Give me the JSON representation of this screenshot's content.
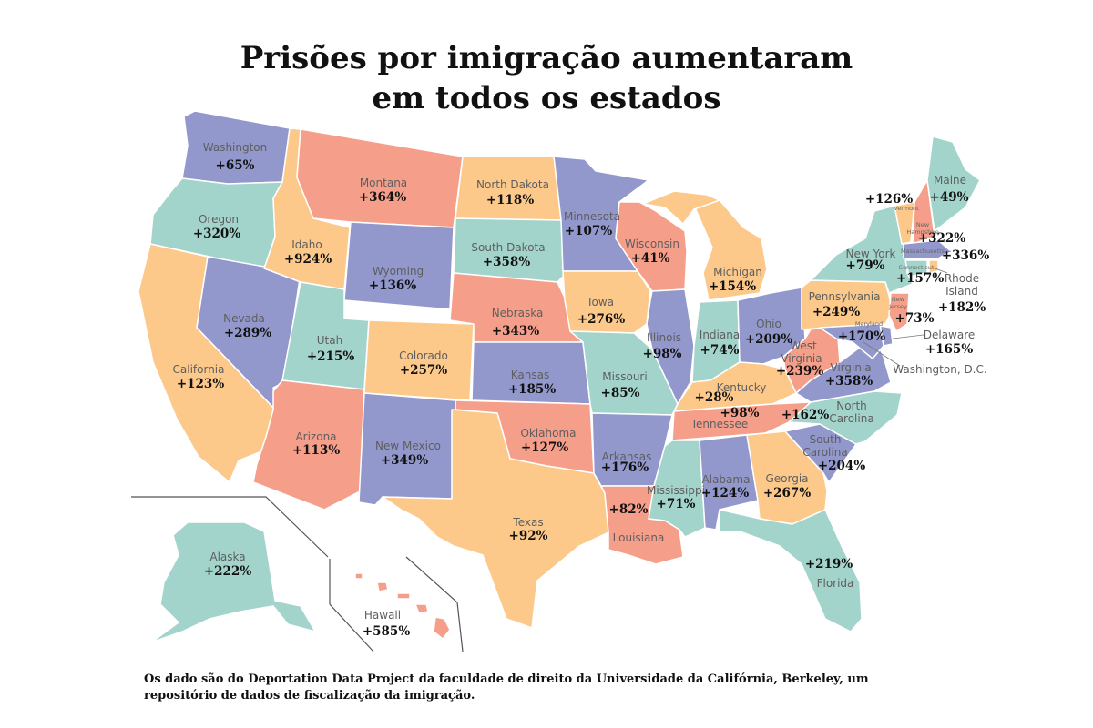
{
  "title": {
    "line1": "Prisões por imigração aumentaram",
    "line2": "em todos os estados"
  },
  "footnote": "Os dado são do Deportation Data Project da faculdade de direito da Universidade da Califórnia, Berkeley, um repositório de dados de fiscalização da imigração.",
  "colors": {
    "teal": "#a3d4cc",
    "orange": "#fcc98b",
    "salmon": "#f59f8a",
    "purple": "#9298cc"
  },
  "states": {
    "washington": {
      "name": "Washington",
      "value": "+65%"
    },
    "oregon": {
      "name": "Oregon",
      "value": "+320%"
    },
    "california": {
      "name": "California",
      "value": "+123%"
    },
    "nevada": {
      "name": "Nevada",
      "value": "+289%"
    },
    "idaho": {
      "name": "Idaho",
      "value": "+924%"
    },
    "montana": {
      "name": "Montana",
      "value": "+364%"
    },
    "wyoming": {
      "name": "Wyoming",
      "value": "+136%"
    },
    "utah": {
      "name": "Utah",
      "value": "+215%"
    },
    "arizona": {
      "name": "Arizona",
      "value": "+113%"
    },
    "colorado": {
      "name": "Colorado",
      "value": "+257%"
    },
    "new_mexico": {
      "name": "New Mexico",
      "value": "+349%"
    },
    "north_dakota": {
      "name": "North Dakota",
      "value": "+118%"
    },
    "south_dakota": {
      "name": "South Dakota",
      "value": "+358%"
    },
    "nebraska": {
      "name": "Nebraska",
      "value": "+343%"
    },
    "kansas": {
      "name": "Kansas",
      "value": "+185%"
    },
    "oklahoma": {
      "name": "Oklahoma",
      "value": "+127%"
    },
    "texas": {
      "name": "Texas",
      "value": "+92%"
    },
    "minnesota": {
      "name": "Minnesota",
      "value": "+107%"
    },
    "iowa": {
      "name": "Iowa",
      "value": "+276%"
    },
    "missouri": {
      "name": "Missouri",
      "value": "+85%"
    },
    "arkansas": {
      "name": "Arkansas",
      "value": "+176%"
    },
    "louisiana": {
      "name": "Louisiana",
      "value": "+82%"
    },
    "wisconsin": {
      "name": "Wisconsin",
      "value": "+41%"
    },
    "illinois": {
      "name": "Illinois",
      "value": "+98%"
    },
    "michigan": {
      "name": "Michigan",
      "value": "+154%"
    },
    "indiana": {
      "name": "Indiana",
      "value": "+74%"
    },
    "ohio": {
      "name": "Ohio",
      "value": "+209%"
    },
    "kentucky": {
      "name": "Kentucky",
      "value": "+28%"
    },
    "tennessee": {
      "name": "Tennessee",
      "value": "+98%"
    },
    "mississippi": {
      "name": "Mississippi",
      "value": "+71%"
    },
    "alabama": {
      "name": "Alabama",
      "value": "+124%"
    },
    "georgia": {
      "name": "Georgia",
      "value": "+267%"
    },
    "florida": {
      "name": "Florida",
      "value": "+219%"
    },
    "south_carolina": {
      "name": "South Carolina",
      "value": "+204%"
    },
    "north_carolina": {
      "name": "North Carolina",
      "value": "+162%"
    },
    "virginia": {
      "name": "Virginia",
      "value": "+358%"
    },
    "west_virginia": {
      "name": "West Virginia",
      "value": "+239%"
    },
    "pennsylvania": {
      "name": "Pennsylvania",
      "value": "+249%"
    },
    "new_york": {
      "name": "New York",
      "value": "+79%"
    },
    "maine": {
      "name": "Maine",
      "value": "+49%"
    },
    "vermont": {
      "name": "Vermont",
      "value": "+126%"
    },
    "new_hampshire": {
      "name": "New Hampshire",
      "value": "+322%"
    },
    "massachusetts": {
      "name": "Massachusetts",
      "value": "+336%"
    },
    "rhode_island": {
      "name": "Rhode Island",
      "value": "+182%"
    },
    "connecticut": {
      "name": "Connecticut",
      "value": "+157%"
    },
    "new_jersey": {
      "name": "New Jersey",
      "value": "+73%"
    },
    "delaware": {
      "name": "Delaware",
      "value": "+165%"
    },
    "maryland": {
      "name": "Maryland",
      "value": "+170%"
    },
    "dc": {
      "name": "Washington, D.C."
    },
    "alaska": {
      "name": "Alaska",
      "value": "+222%"
    },
    "hawaii": {
      "name": "Hawaii",
      "value": "+585%"
    }
  }
}
